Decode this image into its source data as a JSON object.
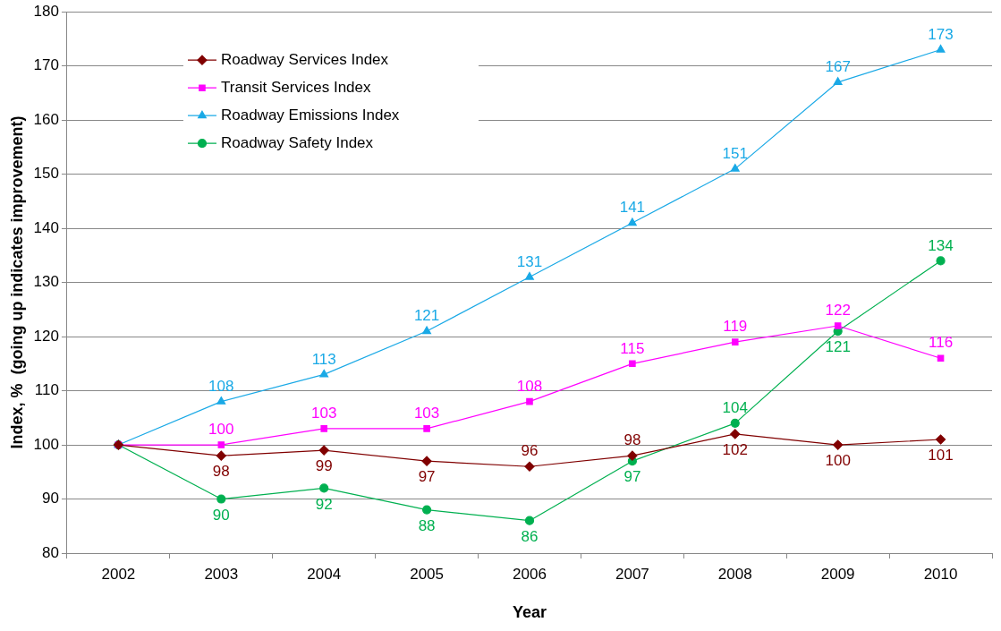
{
  "chart_data": {
    "type": "line",
    "xlabel": "Year",
    "ylabel": "Index, %  (going up indicates improvement)",
    "categories": [
      "2002",
      "2003",
      "2004",
      "2005",
      "2006",
      "2007",
      "2008",
      "2009",
      "2010"
    ],
    "series": [
      {
        "name": "Roadway Services Index",
        "color": "#800000",
        "marker": "diamond",
        "values": [
          100,
          98,
          99,
          97,
          96,
          98,
          102,
          100,
          101
        ],
        "value_labels": [
          null,
          "98",
          "99",
          "97",
          "96",
          "98",
          "102",
          "100",
          "101"
        ]
      },
      {
        "name": "Transit Services Index",
        "color": "#ff00ff",
        "marker": "square",
        "values": [
          100,
          100,
          103,
          103,
          108,
          115,
          119,
          122,
          116
        ],
        "value_labels": [
          null,
          "100",
          "103",
          "103",
          "108",
          "115",
          "119",
          "122",
          "116"
        ]
      },
      {
        "name": "Roadway Emissions Index",
        "color": "#1aa9e6",
        "marker": "triangle",
        "values": [
          100,
          108,
          113,
          121,
          131,
          141,
          151,
          167,
          173
        ],
        "value_labels": [
          null,
          "108",
          "113",
          "121",
          "131",
          "141",
          "151",
          "167",
          "173"
        ]
      },
      {
        "name": "Roadway Safety Index",
        "color": "#00b050",
        "marker": "circle",
        "values": [
          100,
          90,
          92,
          88,
          86,
          97,
          104,
          121,
          134
        ],
        "value_labels": [
          null,
          "90",
          "92",
          "88",
          "86",
          "97",
          "104",
          "121",
          "134"
        ]
      }
    ],
    "ylim": [
      80,
      180
    ],
    "yticks": [
      80,
      90,
      100,
      110,
      120,
      130,
      140,
      150,
      160,
      170,
      180
    ],
    "grid": "y",
    "legend": "top left"
  }
}
